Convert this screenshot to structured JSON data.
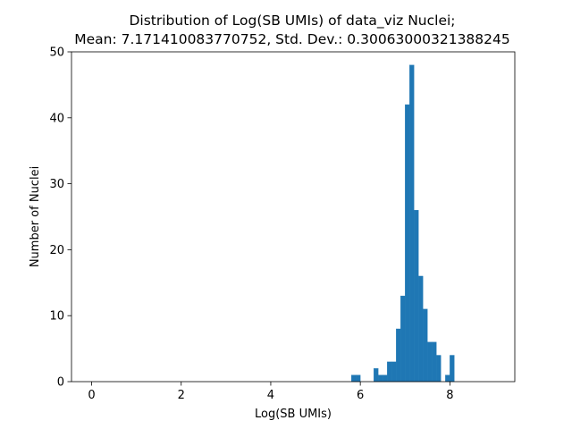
{
  "chart_data": {
    "type": "bar",
    "title": "Distribution of Log(SB UMIs) of data_viz Nuclei;",
    "subtitle": "Mean: 7.171410083770752, Std. Dev.: 0.30063000321388245",
    "xlabel": "Log(SB UMIs)",
    "ylabel": "Number of Nuclei",
    "xlim": [
      -0.45,
      9.45
    ],
    "ylim": [
      0,
      50
    ],
    "xticks": [
      0,
      2,
      4,
      6,
      8
    ],
    "yticks": [
      0,
      10,
      20,
      30,
      40,
      50
    ],
    "bin_width": 0.1,
    "bar_color": "#1f77b4",
    "grid": false,
    "bins": [
      {
        "x": 5.8,
        "count": 1
      },
      {
        "x": 5.9,
        "count": 1
      },
      {
        "x": 6.3,
        "count": 2
      },
      {
        "x": 6.4,
        "count": 1
      },
      {
        "x": 6.5,
        "count": 1
      },
      {
        "x": 6.6,
        "count": 3
      },
      {
        "x": 6.7,
        "count": 3
      },
      {
        "x": 6.8,
        "count": 8
      },
      {
        "x": 6.9,
        "count": 13
      },
      {
        "x": 7.0,
        "count": 42
      },
      {
        "x": 7.1,
        "count": 48
      },
      {
        "x": 7.2,
        "count": 26
      },
      {
        "x": 7.3,
        "count": 16
      },
      {
        "x": 7.4,
        "count": 11
      },
      {
        "x": 7.5,
        "count": 6
      },
      {
        "x": 7.6,
        "count": 6
      },
      {
        "x": 7.7,
        "count": 4
      },
      {
        "x": 7.9,
        "count": 1
      },
      {
        "x": 8.0,
        "count": 4
      }
    ]
  }
}
